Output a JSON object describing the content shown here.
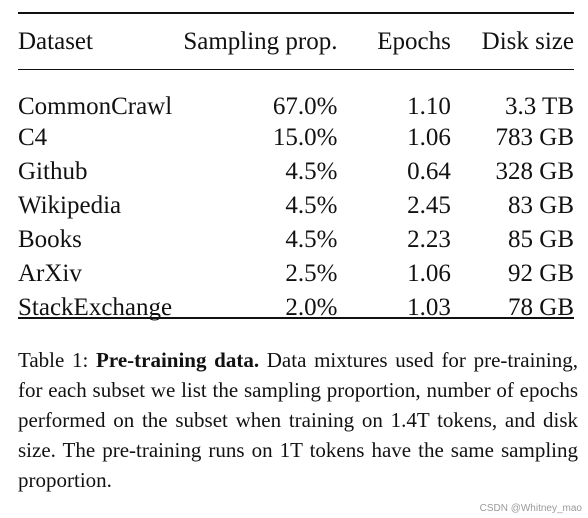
{
  "table": {
    "columns": [
      "Dataset",
      "Sampling prop.",
      "Epochs",
      "Disk size"
    ],
    "rows": [
      [
        "CommonCrawl",
        "67.0%",
        "1.10",
        "3.3 TB"
      ],
      [
        "C4",
        "15.0%",
        "1.06",
        "783 GB"
      ],
      [
        "Github",
        "4.5%",
        "0.64",
        "328 GB"
      ],
      [
        "Wikipedia",
        "4.5%",
        "2.45",
        "83 GB"
      ],
      [
        "Books",
        "4.5%",
        "2.23",
        "85 GB"
      ],
      [
        "ArXiv",
        "2.5%",
        "1.06",
        "92 GB"
      ],
      [
        "StackExchange",
        "2.0%",
        "1.03",
        "78 GB"
      ]
    ]
  },
  "caption": {
    "label": "Table 1:",
    "title": "Pre-training data.",
    "text": "Data mixtures used for pre-training, for each subset we list the sampling proportion, number of epochs performed on the subset when training on 1.4T tokens, and disk size. The pre-training runs on 1T tokens have the same sampling proportion."
  },
  "watermark": "CSDN @Whitney_mao"
}
